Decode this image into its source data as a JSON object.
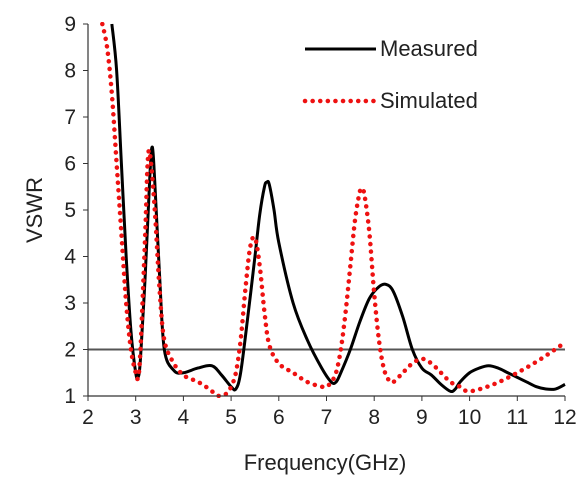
{
  "chart_data": {
    "type": "line",
    "xlabel": "Frequency(GHz)",
    "ylabel": "VSWR",
    "xlim": [
      2,
      12
    ],
    "ylim": [
      1,
      9
    ],
    "xticks": [
      "2",
      "3",
      "4",
      "5",
      "6",
      "7",
      "8",
      "9",
      "10",
      "11",
      "12"
    ],
    "yticks": [
      "1",
      "2",
      "3",
      "4",
      "5",
      "6",
      "7",
      "8",
      "9"
    ],
    "reference_line": {
      "y": 2,
      "color": "#555555"
    },
    "legend": {
      "position": "top-right"
    },
    "series": [
      {
        "name": "Measured",
        "color": "#000000",
        "style": "solid",
        "x": [
          2.5,
          2.6,
          2.7,
          2.8,
          2.9,
          3.0,
          3.05,
          3.1,
          3.2,
          3.3,
          3.35,
          3.4,
          3.5,
          3.6,
          3.8,
          4.0,
          4.3,
          4.6,
          4.8,
          5.0,
          5.1,
          5.2,
          5.35,
          5.5,
          5.6,
          5.7,
          5.75,
          5.8,
          5.9,
          6.0,
          6.3,
          6.6,
          6.9,
          7.1,
          7.2,
          7.3,
          7.5,
          7.7,
          7.9,
          8.1,
          8.25,
          8.4,
          8.6,
          8.8,
          9.0,
          9.2,
          9.4,
          9.6,
          9.7,
          9.8,
          10.0,
          10.2,
          10.4,
          10.6,
          10.8,
          11.0,
          11.2,
          11.4,
          11.6,
          11.8,
          12.0
        ],
        "y": [
          9.0,
          8.0,
          6.0,
          4.0,
          2.4,
          1.5,
          1.4,
          1.8,
          3.6,
          5.8,
          6.35,
          5.6,
          3.6,
          2.0,
          1.55,
          1.5,
          1.6,
          1.65,
          1.45,
          1.2,
          1.15,
          1.5,
          2.7,
          4.0,
          4.9,
          5.5,
          5.6,
          5.55,
          5.0,
          4.3,
          3.0,
          2.2,
          1.6,
          1.3,
          1.3,
          1.5,
          2.0,
          2.6,
          3.1,
          3.35,
          3.4,
          3.25,
          2.7,
          2.0,
          1.6,
          1.45,
          1.25,
          1.1,
          1.15,
          1.3,
          1.5,
          1.6,
          1.65,
          1.6,
          1.5,
          1.4,
          1.3,
          1.2,
          1.15,
          1.15,
          1.25
        ]
      },
      {
        "name": "Simulated",
        "color": "#ee1111",
        "style": "dotted",
        "x": [
          2.3,
          2.4,
          2.5,
          2.6,
          2.7,
          2.8,
          2.9,
          3.0,
          3.05,
          3.1,
          3.2,
          3.25,
          3.3,
          3.4,
          3.5,
          3.6,
          3.8,
          4.0,
          4.2,
          4.4,
          4.6,
          4.75,
          4.9,
          5.0,
          5.1,
          5.2,
          5.3,
          5.4,
          5.5,
          5.6,
          5.7,
          5.8,
          6.0,
          6.3,
          6.6,
          6.9,
          7.0,
          7.1,
          7.2,
          7.3,
          7.4,
          7.5,
          7.6,
          7.7,
          7.75,
          7.8,
          7.9,
          8.0,
          8.1,
          8.2,
          8.3,
          8.4,
          8.6,
          8.8,
          9.0,
          9.2,
          9.4,
          9.6,
          9.8,
          10.0,
          10.5,
          11.0,
          11.5,
          12.0
        ],
        "y": [
          9.0,
          8.5,
          7.5,
          6.0,
          4.5,
          3.0,
          2.0,
          1.5,
          1.4,
          2.0,
          4.5,
          6.0,
          6.2,
          5.0,
          3.3,
          2.2,
          1.7,
          1.45,
          1.35,
          1.25,
          1.1,
          1.0,
          1.05,
          1.2,
          1.5,
          2.2,
          3.3,
          4.2,
          4.4,
          3.8,
          2.8,
          2.1,
          1.7,
          1.5,
          1.3,
          1.2,
          1.2,
          1.3,
          1.5,
          2.0,
          2.8,
          3.8,
          4.8,
          5.4,
          5.45,
          5.3,
          4.5,
          3.2,
          2.2,
          1.6,
          1.35,
          1.3,
          1.5,
          1.7,
          1.8,
          1.7,
          1.5,
          1.3,
          1.2,
          1.1,
          1.25,
          1.5,
          1.8,
          2.15
        ]
      }
    ]
  }
}
